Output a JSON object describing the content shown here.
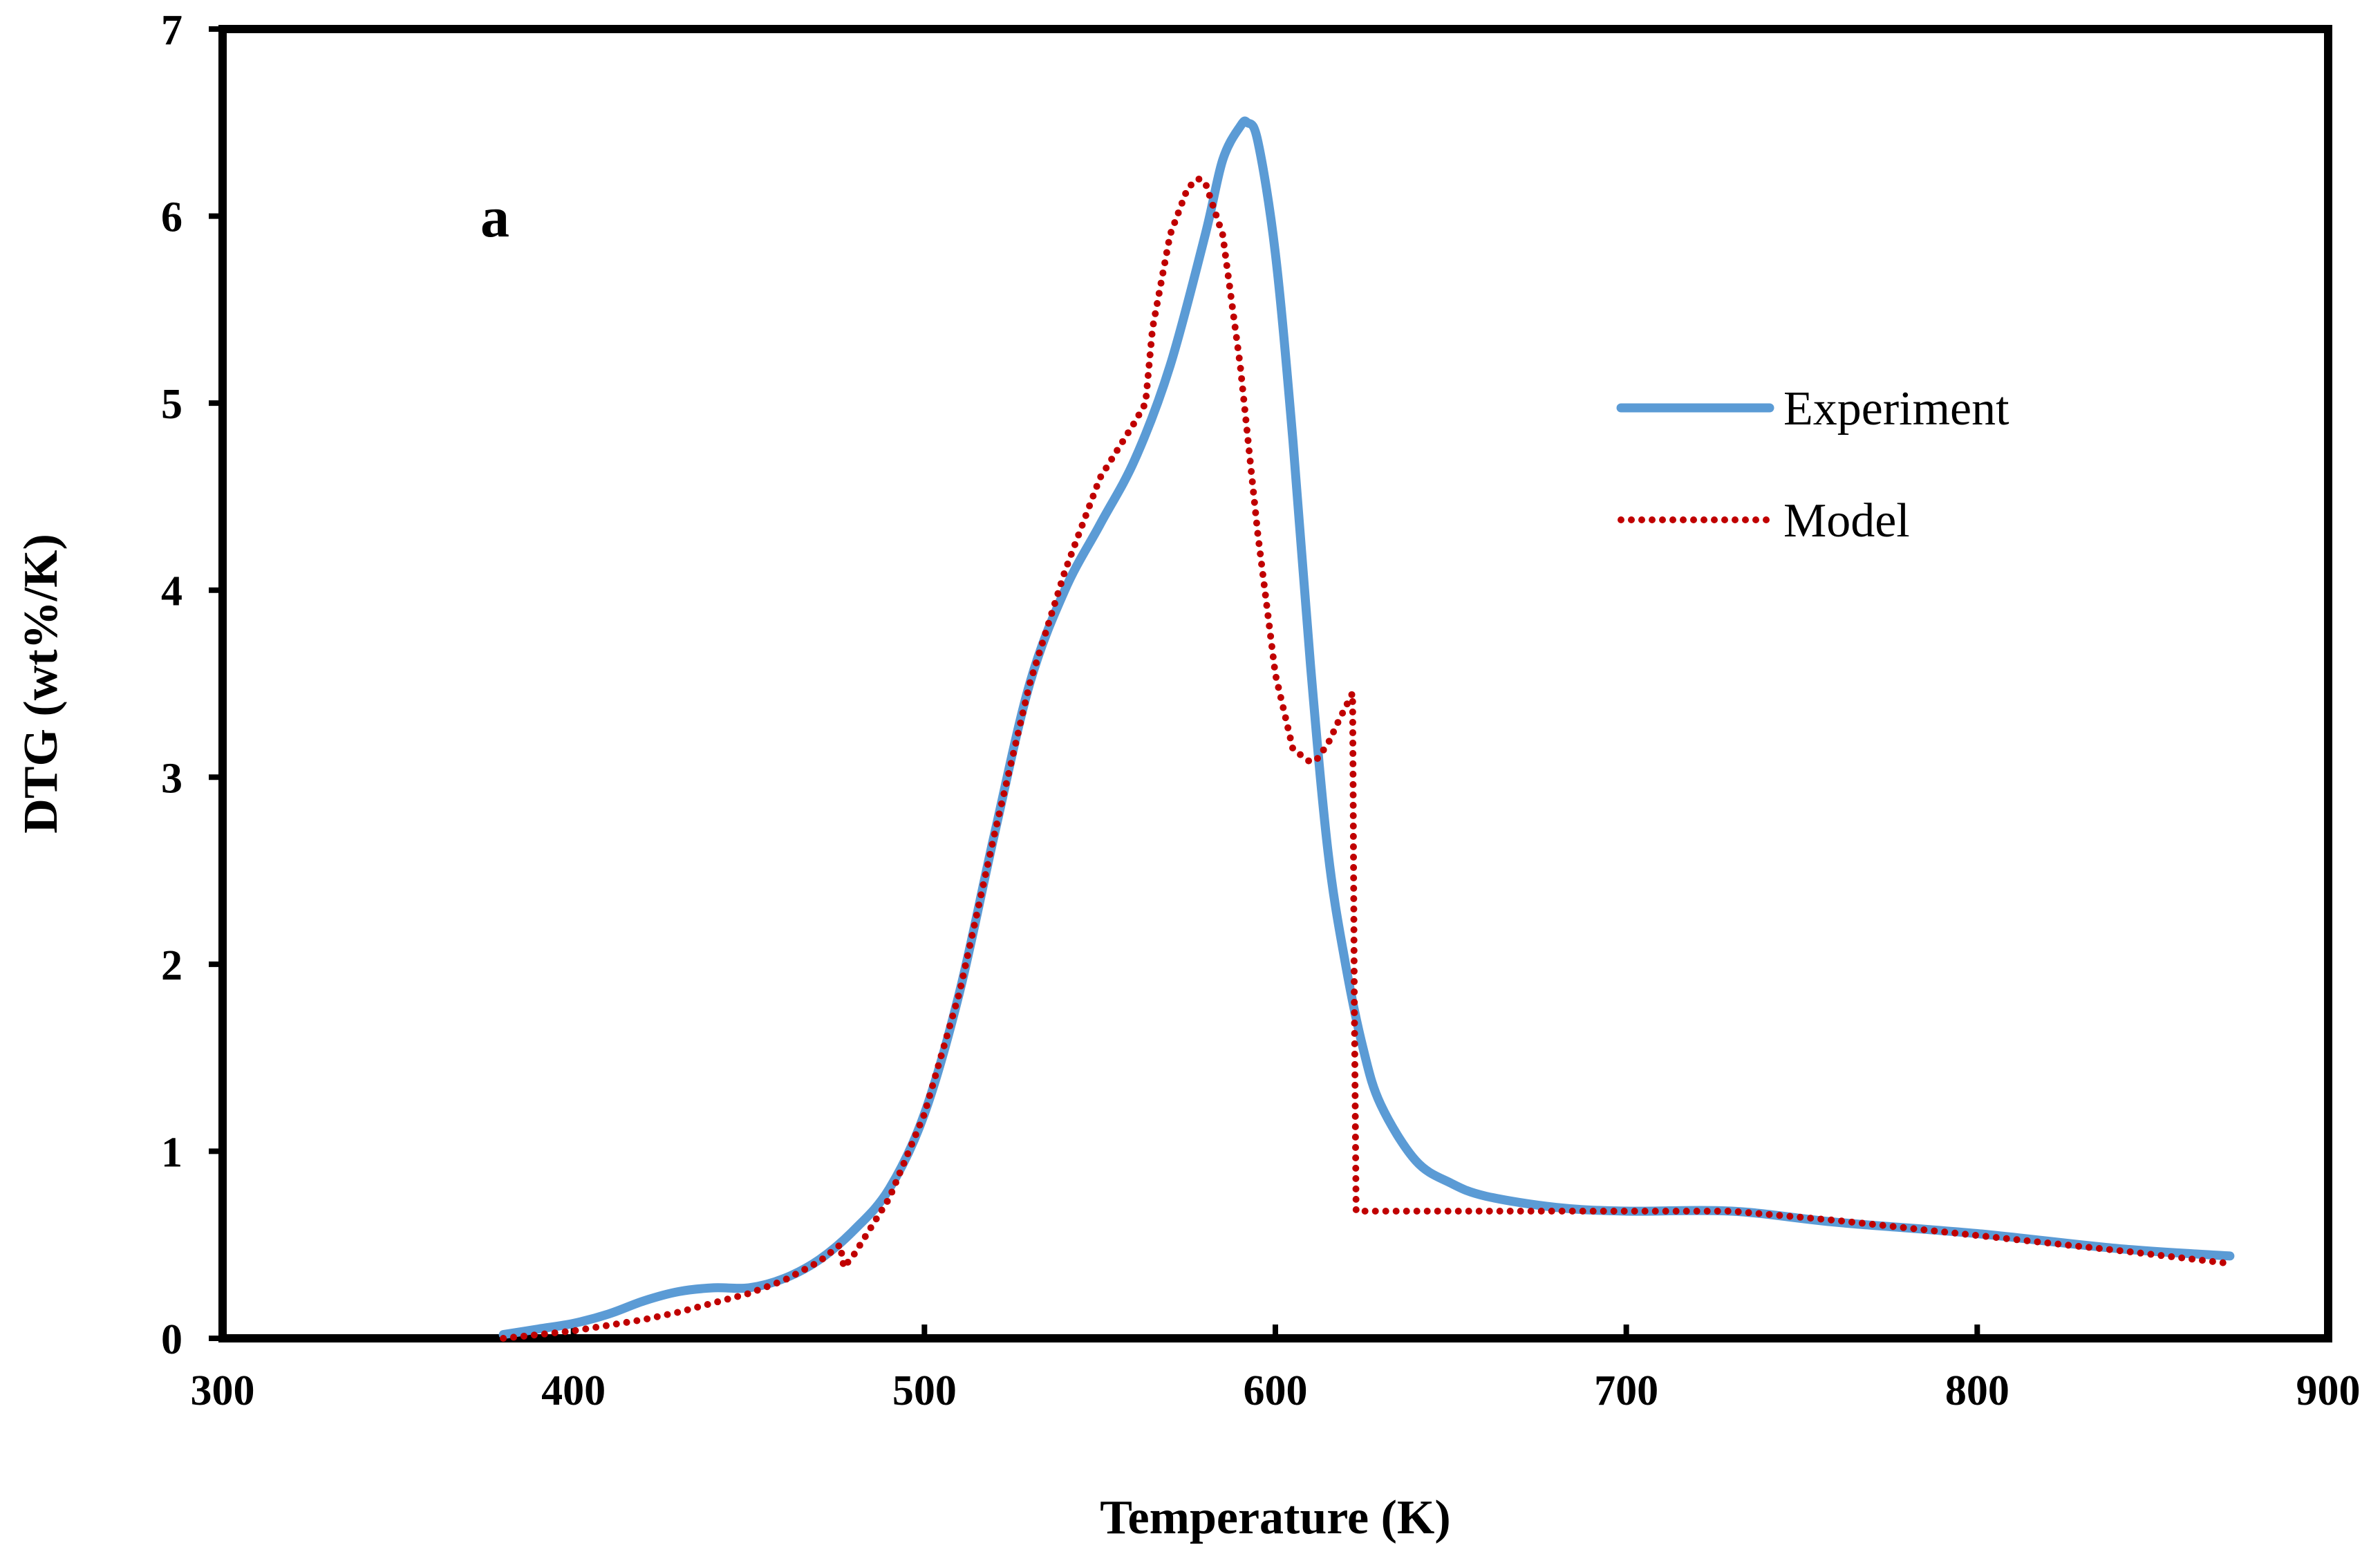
{
  "chart_data": {
    "type": "line",
    "panel_label": "a",
    "xlabel": "Temperature (K)",
    "ylabel": "DTG (wt%/K)",
    "xlim": [
      300,
      900
    ],
    "ylim": [
      0,
      7
    ],
    "xticks": [
      300,
      400,
      500,
      600,
      700,
      800,
      900
    ],
    "yticks": [
      0,
      1,
      2,
      3,
      4,
      5,
      6,
      7
    ],
    "grid": false,
    "legend_position": "right, upper-middle",
    "series": [
      {
        "name": "Experiment",
        "style": "solid",
        "color": "#5B9BD5",
        "x": [
          380,
          390,
          400,
          410,
          420,
          430,
          440,
          450,
          460,
          470,
          480,
          490,
          500,
          510,
          520,
          530,
          540,
          550,
          560,
          570,
          580,
          585,
          590,
          592,
          595,
          600,
          605,
          610,
          615,
          620,
          625,
          630,
          640,
          650,
          660,
          680,
          700,
          730,
          760,
          800,
          840,
          872
        ],
        "y": [
          0.02,
          0.05,
          0.08,
          0.13,
          0.2,
          0.25,
          0.27,
          0.27,
          0.32,
          0.42,
          0.58,
          0.8,
          1.2,
          1.85,
          2.7,
          3.5,
          4.0,
          4.35,
          4.7,
          5.2,
          5.9,
          6.3,
          6.48,
          6.5,
          6.4,
          5.8,
          4.8,
          3.6,
          2.6,
          2.0,
          1.55,
          1.25,
          0.95,
          0.83,
          0.76,
          0.7,
          0.68,
          0.68,
          0.62,
          0.56,
          0.48,
          0.44
        ]
      },
      {
        "name": "Model",
        "style": "dotted",
        "color": "#C00000",
        "x": [
          380,
          390,
          400,
          410,
          420,
          430,
          440,
          450,
          460,
          470,
          476,
          477,
          480,
          490,
          500,
          510,
          520,
          530,
          540,
          550,
          560,
          563,
          565,
          570,
          575,
          578,
          580,
          585,
          590,
          595,
          600,
          605,
          610,
          612,
          615,
          618,
          622,
          622.5,
          623,
          650,
          700,
          730,
          760,
          800,
          840,
          872
        ],
        "y": [
          0.0,
          0.02,
          0.04,
          0.07,
          0.1,
          0.14,
          0.19,
          0.24,
          0.31,
          0.41,
          0.5,
          0.38,
          0.45,
          0.75,
          1.2,
          1.85,
          2.7,
          3.5,
          4.1,
          4.6,
          4.9,
          5.0,
          5.4,
          5.9,
          6.15,
          6.2,
          6.18,
          5.9,
          5.2,
          4.3,
          3.55,
          3.15,
          3.08,
          3.1,
          3.18,
          3.3,
          3.45,
          1.8,
          0.68,
          0.68,
          0.68,
          0.68,
          0.63,
          0.55,
          0.47,
          0.4
        ]
      }
    ]
  }
}
